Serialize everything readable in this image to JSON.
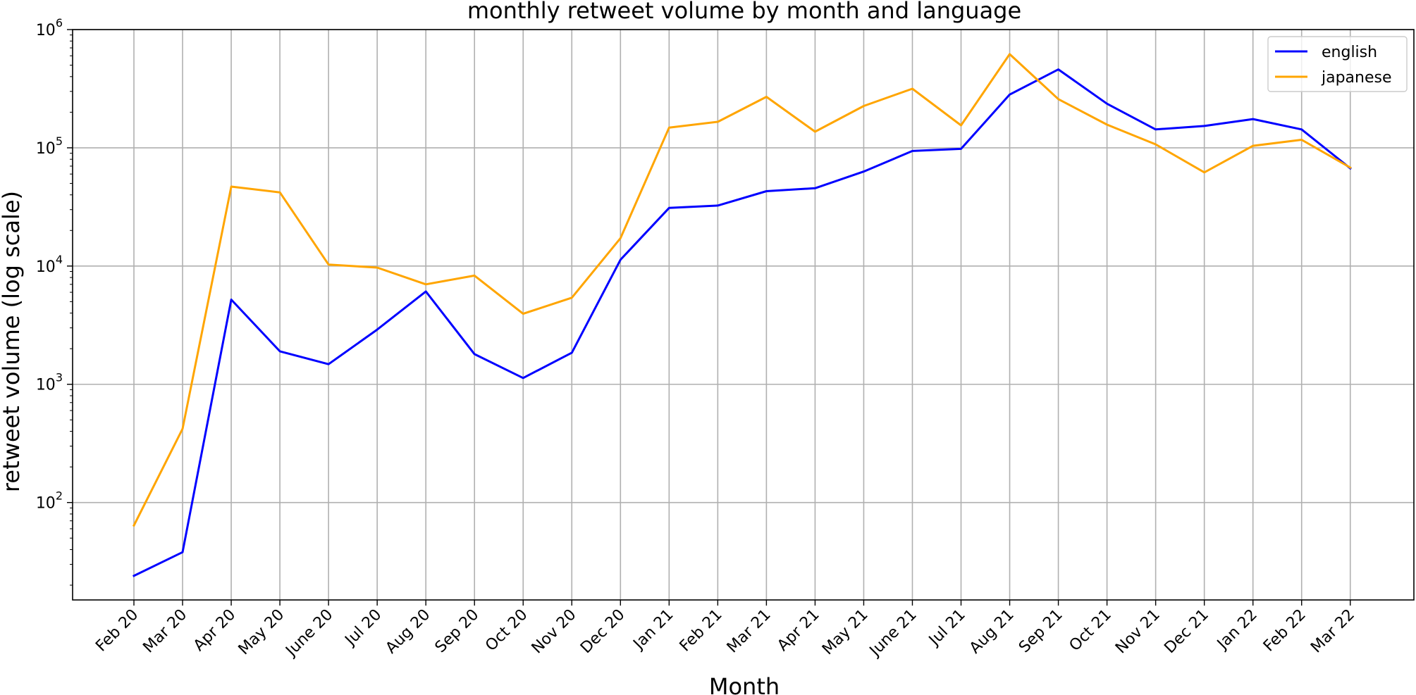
{
  "chart_data": {
    "type": "line",
    "title": "monthly retweet volume by month and language",
    "xlabel": "Month",
    "ylabel": "retweet volume (log scale)",
    "yscale": "log",
    "ylim": [
      15,
      1000000
    ],
    "yticks": [
      {
        "value": 100,
        "base": "10",
        "exp": "2"
      },
      {
        "value": 1000,
        "base": "10",
        "exp": "3"
      },
      {
        "value": 10000,
        "base": "10",
        "exp": "4"
      },
      {
        "value": 100000,
        "base": "10",
        "exp": "5"
      },
      {
        "value": 1000000,
        "base": "10",
        "exp": "6"
      }
    ],
    "categories": [
      "Feb 20",
      "Mar 20",
      "Apr 20",
      "May 20",
      "June 20",
      "Jul 20",
      "Aug 20",
      "Sep 20",
      "Oct 20",
      "Nov 20",
      "Dec 20",
      "Jan 21",
      "Feb 21",
      "Mar 21",
      "Apr 21",
      "May 21",
      "June 21",
      "Jul 21",
      "Aug 21",
      "Sep 21",
      "Oct 21",
      "Nov 21",
      "Dec 21",
      "Jan 22",
      "Feb 22",
      "Mar 22"
    ],
    "series": [
      {
        "name": "english",
        "color": "#0000ff",
        "values": [
          24,
          38,
          5200,
          1900,
          1480,
          2900,
          6100,
          1800,
          1130,
          1850,
          11300,
          31000,
          32500,
          43000,
          45500,
          63000,
          94000,
          98000,
          282000,
          460000,
          236000,
          143000,
          153000,
          175000,
          143000,
          67000
        ]
      },
      {
        "name": "japanese",
        "color": "#ffa500",
        "values": [
          64,
          420,
          47000,
          42000,
          10300,
          9700,
          7000,
          8300,
          3950,
          5400,
          17200,
          148000,
          166000,
          270000,
          137000,
          226000,
          316000,
          155000,
          620000,
          258000,
          157000,
          107000,
          62000,
          104000,
          117000,
          68000
        ]
      }
    ],
    "grid": true,
    "legend_position": "top-right"
  }
}
